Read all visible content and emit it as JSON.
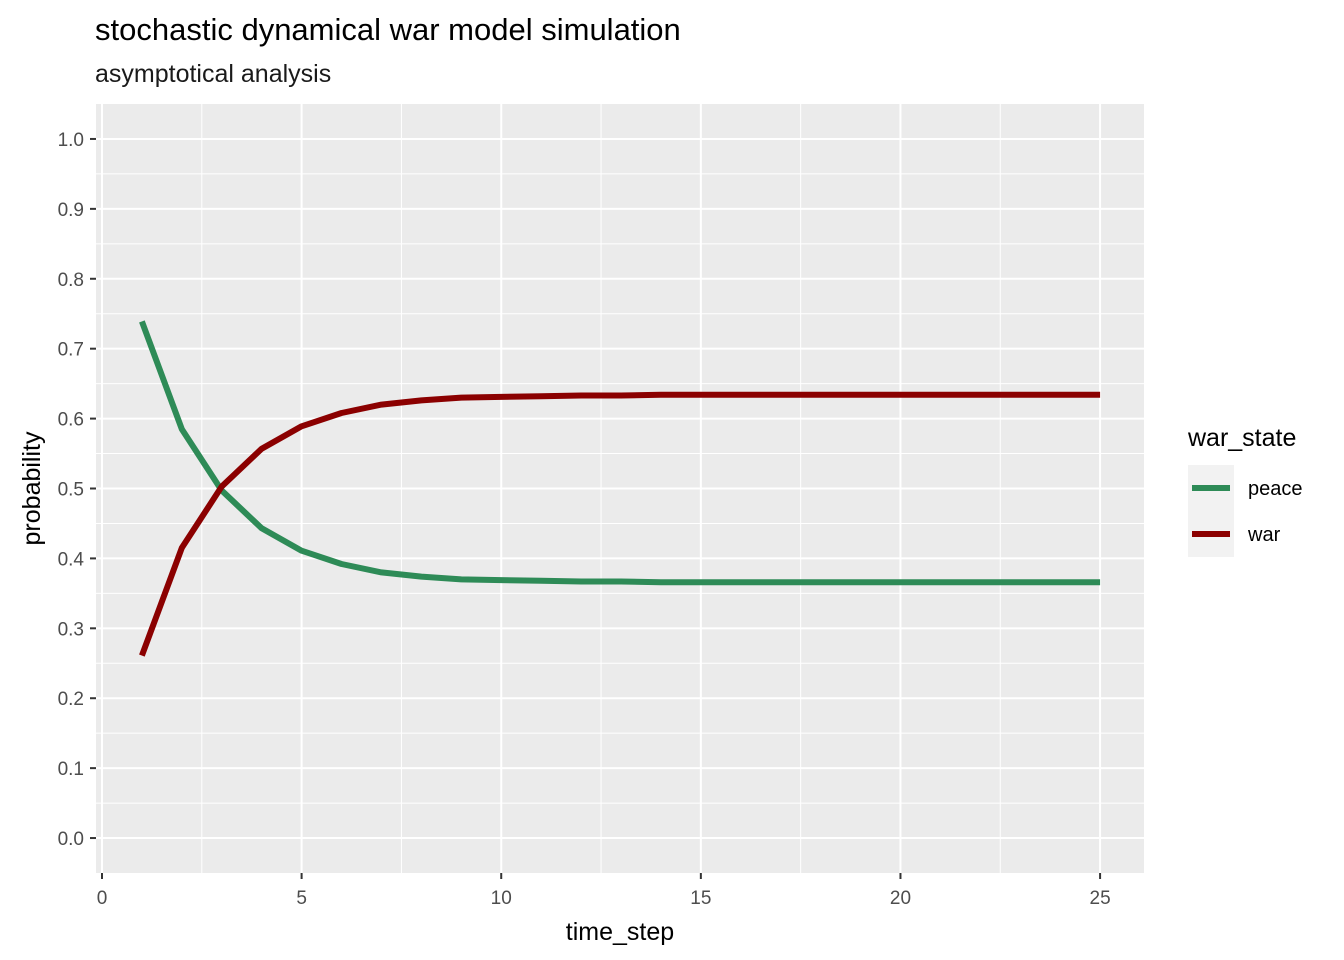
{
  "chart_data": {
    "type": "line",
    "title": "stochastic dynamical war model simulation",
    "subtitle": "asymptotical analysis",
    "xlabel": "time_step",
    "ylabel": "probability",
    "xlim": [
      -0.15,
      26.1
    ],
    "ylim": [
      -0.05,
      1.05
    ],
    "x_ticks": [
      0,
      5,
      10,
      15,
      20,
      25
    ],
    "y_ticks": [
      0.0,
      0.1,
      0.2,
      0.3,
      0.4,
      0.5,
      0.6,
      0.7,
      0.8,
      0.9,
      1.0
    ],
    "x_tick_labels": [
      "0",
      "5",
      "10",
      "15",
      "20",
      "25"
    ],
    "y_tick_labels": [
      "0.0",
      "0.1",
      "0.2",
      "0.3",
      "0.4",
      "0.5",
      "0.6",
      "0.7",
      "0.8",
      "0.9",
      "1.0"
    ],
    "grid": true,
    "background": "#ebebeb",
    "legend": {
      "title": "war_state",
      "position": "right"
    },
    "x": [
      1,
      2,
      3,
      4,
      5,
      6,
      7,
      8,
      9,
      10,
      11,
      12,
      13,
      14,
      15,
      16,
      17,
      18,
      19,
      20,
      21,
      22,
      23,
      24,
      25
    ],
    "series": [
      {
        "name": "peace",
        "color": "#2e8b57",
        "values": [
          0.739,
          0.585,
          0.497,
          0.443,
          0.411,
          0.392,
          0.38,
          0.374,
          0.37,
          0.369,
          0.368,
          0.367,
          0.367,
          0.366,
          0.366,
          0.366,
          0.366,
          0.366,
          0.366,
          0.366,
          0.366,
          0.366,
          0.366,
          0.366,
          0.366
        ]
      },
      {
        "name": "war",
        "color": "#8b0000",
        "values": [
          0.261,
          0.415,
          0.503,
          0.557,
          0.589,
          0.608,
          0.62,
          0.626,
          0.63,
          0.631,
          0.632,
          0.633,
          0.633,
          0.634,
          0.634,
          0.634,
          0.634,
          0.634,
          0.634,
          0.634,
          0.634,
          0.634,
          0.634,
          0.634,
          0.634
        ]
      }
    ]
  }
}
